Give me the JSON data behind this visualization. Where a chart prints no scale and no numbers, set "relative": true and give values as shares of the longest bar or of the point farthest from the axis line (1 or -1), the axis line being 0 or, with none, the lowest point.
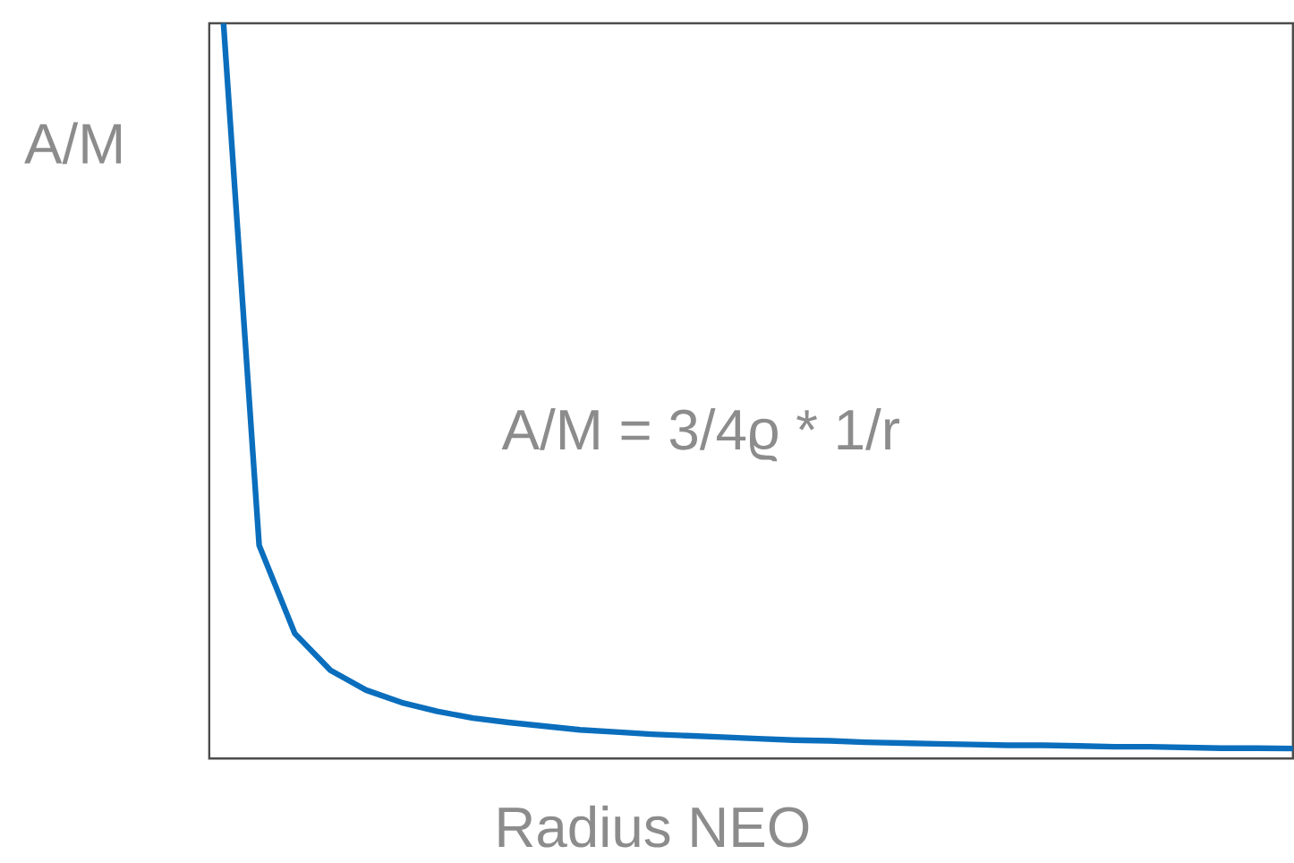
{
  "chart_data": {
    "type": "line",
    "relative": true,
    "xlabel": "Radius NEO",
    "ylabel": "A/M",
    "annotations": [
      "A/M = 3/4ϱ * 1/r"
    ],
    "categories": [
      null,
      null,
      null,
      null,
      null,
      null,
      null,
      null,
      null,
      null,
      null,
      null,
      null,
      null,
      null,
      null,
      null,
      null,
      null,
      null,
      null,
      null,
      null,
      null,
      null,
      null,
      null,
      null,
      null,
      null,
      null
    ],
    "marker": "none",
    "line_style": "solid",
    "series": [
      {
        "color": "#0a6ebd",
        "values": [
          1.0,
          0.29,
          0.17,
          0.12,
          0.093,
          0.076,
          0.064,
          0.055,
          0.049,
          0.044,
          0.039,
          0.036,
          0.033,
          0.031,
          0.029,
          0.027,
          0.025,
          0.024,
          0.022,
          0.021,
          0.02,
          0.019,
          0.018,
          0.018,
          0.017,
          0.016,
          0.016,
          0.015,
          0.014,
          0.014,
          0.0135
        ]
      }
    ]
  }
}
